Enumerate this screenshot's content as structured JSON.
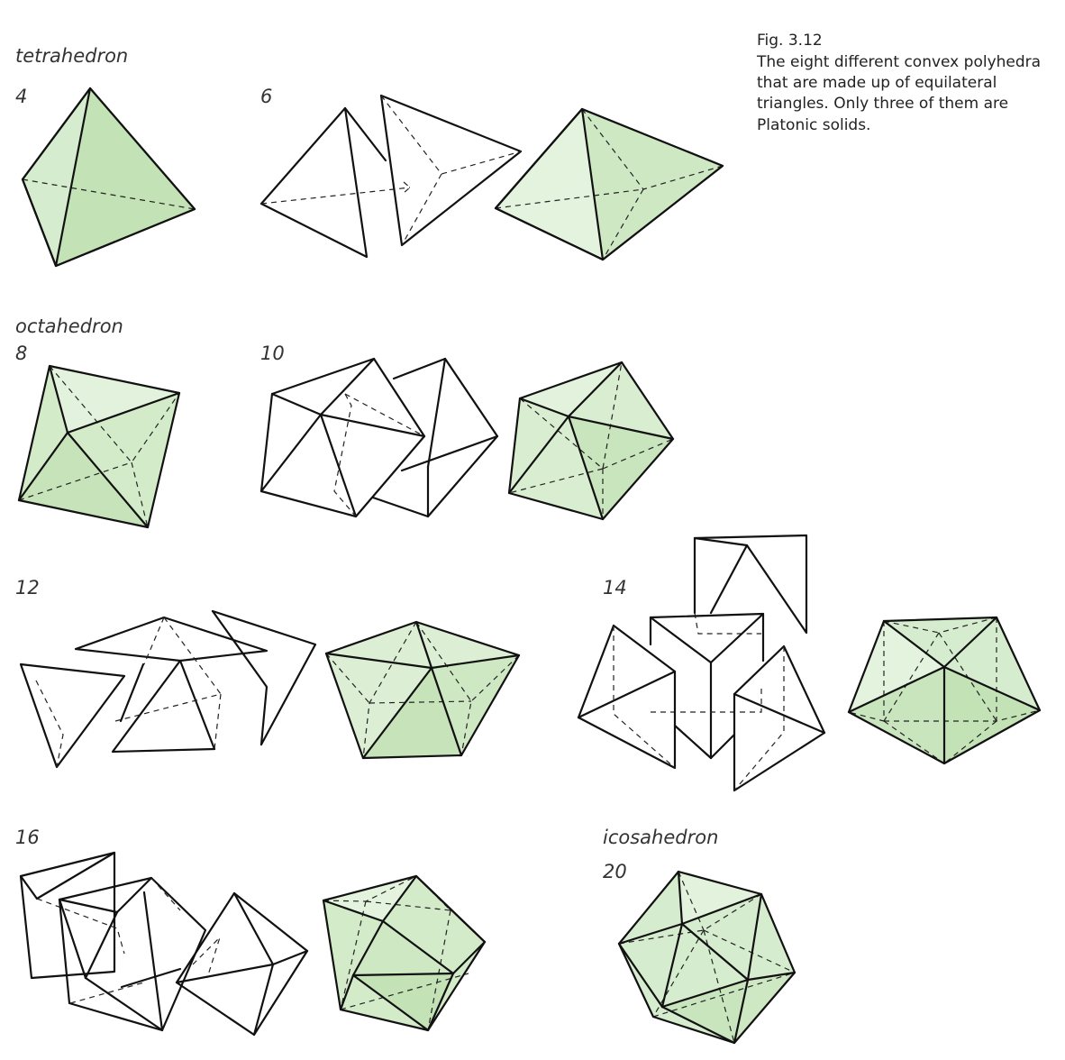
{
  "caption": {
    "fig_number": "Fig. 3.12",
    "lines": [
      "The eight different convex polyhedra",
      "that are made up of equilateral",
      "triangles. Only three of them are",
      "Platonic solids."
    ]
  },
  "labels": {
    "tetrahedron": "tetrahedron",
    "octahedron": "octahedron",
    "icosahedron": "icosahedron",
    "n4": "4",
    "n6": "6",
    "n8": "8",
    "n10": "10",
    "n12": "12",
    "n14": "14",
    "n16": "16",
    "n20": "20"
  },
  "colors": {
    "fill_green": "#d6ecce",
    "fill_green_dark": "#c3e2b6",
    "fill_green_light": "#e4f3de",
    "stroke": "#111111"
  }
}
